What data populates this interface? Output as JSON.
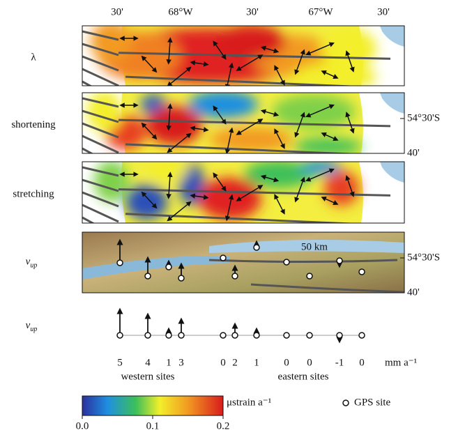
{
  "top_axis": {
    "labels": [
      "30'",
      "68°W",
      "30'",
      "67°W",
      "30'"
    ]
  },
  "panels": [
    {
      "label": "λ"
    },
    {
      "label": "shortening",
      "right_labels": [
        "54°30'S",
        "40'"
      ]
    },
    {
      "label": "stretching"
    },
    {
      "label": {
        "main": "v",
        "sub": "up"
      },
      "right_labels": [
        "54°30'S",
        "40'"
      ],
      "scale_bar": "50 km"
    }
  ],
  "profile": {
    "label": {
      "main": "v",
      "sub": "up"
    },
    "sites": [
      5,
      4,
      1,
      3,
      0,
      2,
      1,
      0,
      0,
      -1,
      0
    ],
    "units": "mm a⁻¹",
    "groups": [
      "western sites",
      "eastern sites"
    ]
  },
  "legend": {
    "colorbar": {
      "ticks": [
        {
          "value": 0,
          "label": "0.0"
        },
        0.1,
        0.2
      ],
      "label": "μstrain a⁻¹"
    },
    "gps_site": "GPS site"
  }
}
